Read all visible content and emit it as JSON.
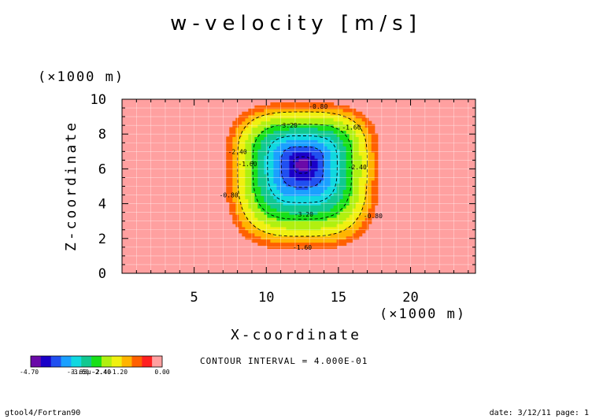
{
  "chart_data": {
    "type": "heatmap",
    "title": "w-velocity [m/s]",
    "xlabel": "X-coordinate",
    "ylabel": "Z-coordinate",
    "x_unit_label": "(×1000 m)",
    "y_unit_label": "(×1000 m)",
    "xlim": [
      0,
      24.5
    ],
    "ylim": [
      0,
      10
    ],
    "x_ticks": [
      5,
      10,
      15,
      20
    ],
    "y_ticks": [
      0,
      2,
      4,
      6,
      8,
      10
    ],
    "grid": true,
    "field": {
      "levels": [
        -4.7,
        -4.4,
        -4.0,
        -3.6,
        -3.2,
        -2.8,
        -2.4,
        -2.0,
        -1.6,
        -1.2,
        -0.8,
        -0.4,
        0.0
      ],
      "colors": [
        "#6a0aa8",
        "#1a00c8",
        "#2050f0",
        "#1aa0ff",
        "#10d8e0",
        "#10c890",
        "#18e018",
        "#b0f010",
        "#f0f010",
        "#ffb400",
        "#ff6000",
        "#ff2020",
        "#ffa0a0"
      ],
      "background_value": 0.0,
      "minimum_value": -4.7,
      "minimum_location": {
        "x": 12.5,
        "z": 6.3
      },
      "anomaly_x_range": [
        6.9,
        18.1
      ],
      "anomaly_z_range": [
        1.1,
        10
      ]
    },
    "contour_labels": [
      {
        "text": "-0.80",
        "x": 13.6,
        "z": 9.6
      },
      {
        "text": "-1.60",
        "x": 15.9,
        "z": 8.4
      },
      {
        "text": "-2.40",
        "x": 8.0,
        "z": 7.0
      },
      {
        "text": "-3.20",
        "x": 11.5,
        "z": 8.5
      },
      {
        "text": "-1.60",
        "x": 8.7,
        "z": 6.3
      },
      {
        "text": "-2.40",
        "x": 16.3,
        "z": 6.1
      },
      {
        "text": "-3.20",
        "x": 12.6,
        "z": 3.4
      },
      {
        "text": "-0.80",
        "x": 7.4,
        "z": 4.5
      },
      {
        "text": "-0.80",
        "x": 17.4,
        "z": 3.3
      },
      {
        "text": "-1.60",
        "x": 12.5,
        "z": 1.5
      }
    ],
    "legend": {
      "labels": [
        "-4.70",
        "-3.60",
        "-2.40",
        "-1.20",
        "0.00"
      ],
      "overlap_text": "-3.65μ-2.40"
    },
    "annotation": "CONTOUR INTERVAL = 4.000E-01"
  },
  "footer": {
    "left": "gtool4/Fortran90",
    "right": "date: 3/12/11 page: 1"
  }
}
